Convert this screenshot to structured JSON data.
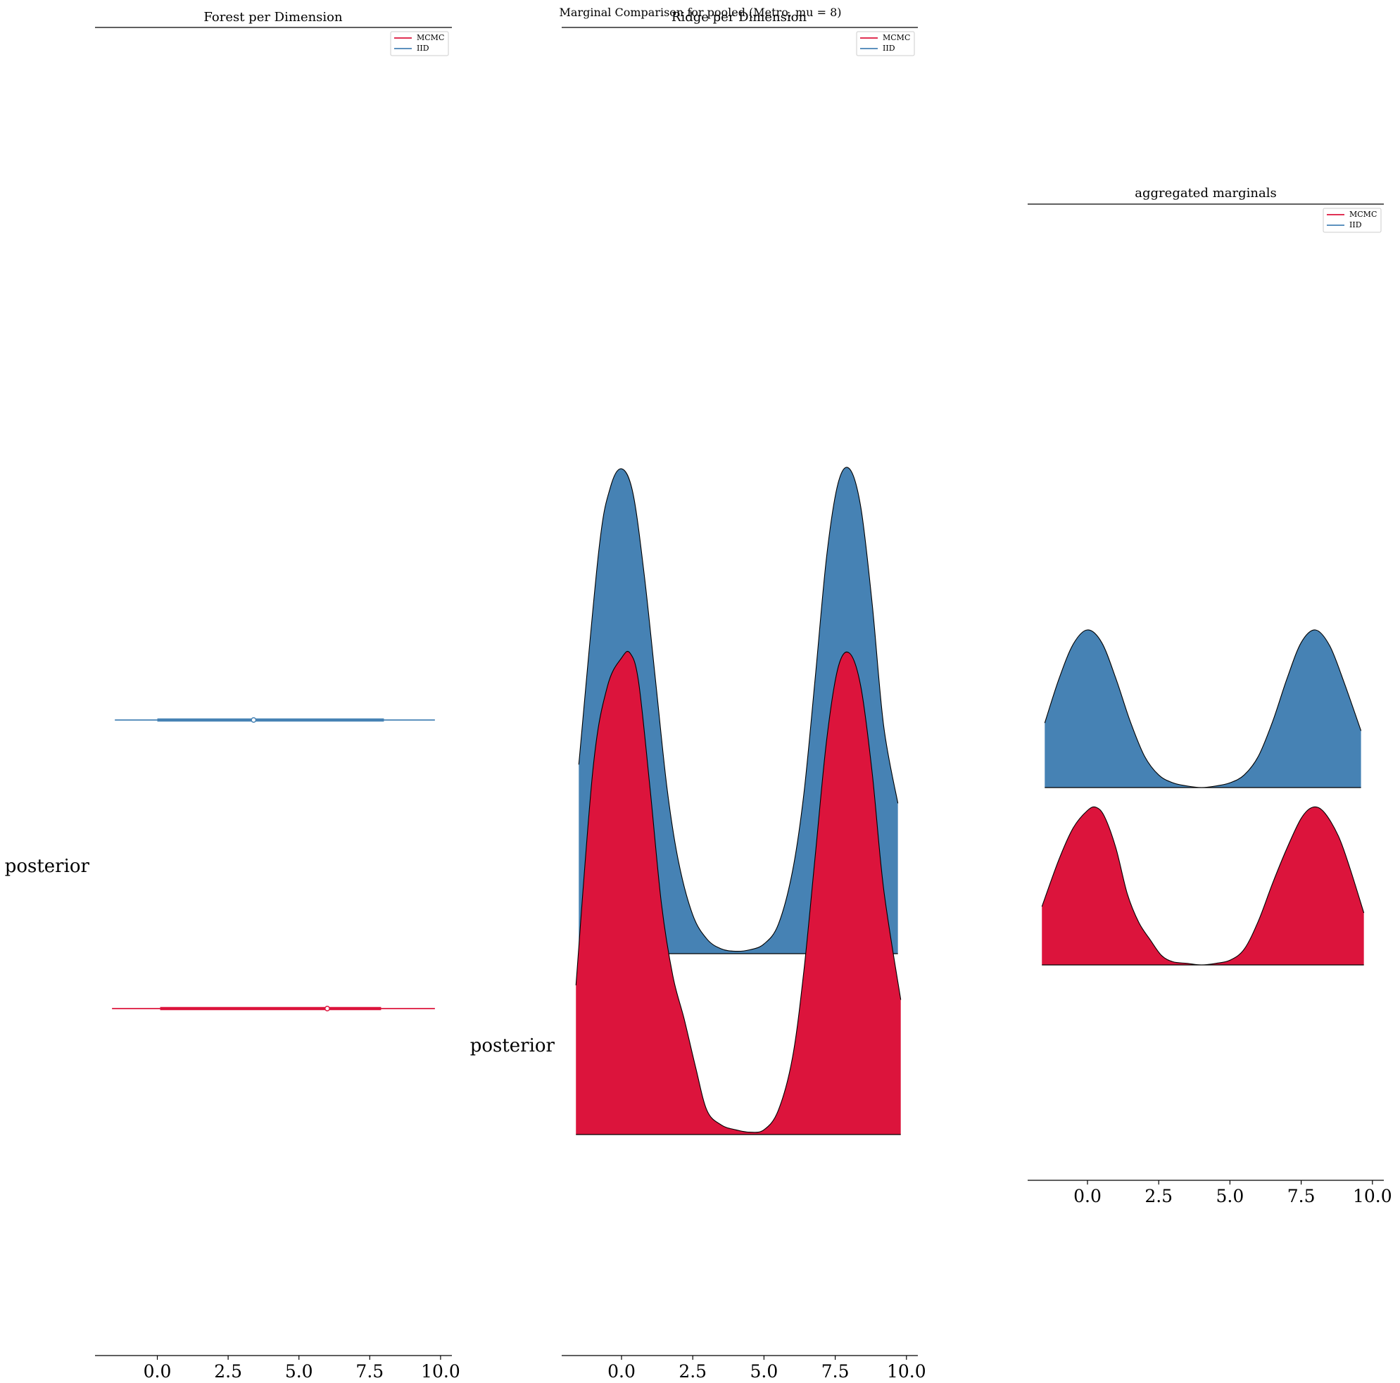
{
  "figure": {
    "suptitle": "Marginal Comparison for pooled (Metro, mu = 8)"
  },
  "colors": {
    "mcmc": "#DC143C",
    "iid": "#4682B4",
    "edge": "#000000"
  },
  "legend": {
    "entries": [
      {
        "label": "MCMC",
        "color": "#DC143C"
      },
      {
        "label": "IID",
        "color": "#4682B4"
      }
    ]
  },
  "chart_data": [
    {
      "type": "forest",
      "title": "Forest per Dimension",
      "ytick_label": "posterior",
      "xticks": [
        0.0,
        2.5,
        5.0,
        7.5,
        10.0
      ],
      "xtick_labels": [
        "0.0",
        "2.5",
        "5.0",
        "7.5",
        "10.0"
      ],
      "xlim": [
        -2.2,
        10.4
      ],
      "legend_placement": "top-right",
      "series": [
        {
          "name": "IID",
          "color": "#4682B4",
          "hdi_outer": [
            -1.5,
            9.8
          ],
          "hdi_inner": [
            0.0,
            8.0
          ],
          "point": 3.4
        },
        {
          "name": "MCMC",
          "color": "#DC143C",
          "hdi_outer": [
            -1.6,
            9.8
          ],
          "hdi_inner": [
            0.1,
            7.9
          ],
          "point": 6.0
        }
      ]
    },
    {
      "type": "area",
      "subtype": "ridgeline",
      "title": "Ridge per Dimension",
      "ytick_label": "posterior",
      "xticks": [
        0.0,
        2.5,
        5.0,
        7.5,
        10.0
      ],
      "xtick_labels": [
        "0.0",
        "2.5",
        "5.0",
        "7.5",
        "10.0"
      ],
      "xlim": [
        -2.1,
        10.4
      ],
      "legend_placement": "top-right",
      "series": [
        {
          "name": "IID",
          "color": "#4682B4",
          "x": [
            -1.5,
            -0.8,
            -0.4,
            0.0,
            0.4,
            0.8,
            1.2,
            1.6,
            2.0,
            2.5,
            3.0,
            3.5,
            4.0,
            4.5,
            5.0,
            5.5,
            6.0,
            6.4,
            6.8,
            7.2,
            7.6,
            8.0,
            8.4,
            8.8,
            9.2,
            9.7
          ],
          "y": [
            0.39,
            0.83,
            0.96,
            1.0,
            0.95,
            0.78,
            0.56,
            0.34,
            0.19,
            0.08,
            0.03,
            0.01,
            0.005,
            0.008,
            0.02,
            0.06,
            0.17,
            0.33,
            0.57,
            0.82,
            0.97,
            1.0,
            0.92,
            0.72,
            0.47,
            0.31
          ]
        },
        {
          "name": "MCMC",
          "color": "#DC143C",
          "x": [
            -1.6,
            -1.0,
            -0.5,
            0.0,
            0.3,
            0.6,
            1.0,
            1.4,
            1.8,
            2.2,
            2.6,
            3.0,
            3.5,
            4.0,
            4.5,
            5.0,
            5.5,
            6.0,
            6.4,
            6.8,
            7.2,
            7.6,
            8.0,
            8.4,
            8.8,
            9.2,
            9.8
          ],
          "y": [
            0.31,
            0.76,
            0.93,
            0.99,
            1.0,
            0.94,
            0.72,
            0.48,
            0.33,
            0.24,
            0.14,
            0.05,
            0.02,
            0.01,
            0.005,
            0.01,
            0.05,
            0.16,
            0.34,
            0.58,
            0.82,
            0.97,
            1.0,
            0.93,
            0.75,
            0.51,
            0.28
          ]
        }
      ]
    },
    {
      "type": "area",
      "subtype": "ridgeline",
      "title": "aggregated marginals",
      "ytick_label": "",
      "xticks": [
        0.0,
        2.5,
        5.0,
        7.5,
        10.0
      ],
      "xtick_labels": [
        "0.0",
        "2.5",
        "5.0",
        "7.5",
        "10.0"
      ],
      "xlim": [
        -2.1,
        10.4
      ],
      "legend_placement": "top-right",
      "series": [
        {
          "name": "IID",
          "color": "#4682B4",
          "x": [
            -1.5,
            -1.0,
            -0.5,
            0.0,
            0.5,
            1.0,
            1.5,
            2.0,
            2.5,
            3.0,
            3.5,
            4.0,
            4.5,
            5.0,
            5.5,
            6.0,
            6.5,
            7.0,
            7.5,
            8.0,
            8.5,
            9.0,
            9.6
          ],
          "y": [
            0.41,
            0.69,
            0.91,
            1.0,
            0.92,
            0.69,
            0.42,
            0.2,
            0.08,
            0.03,
            0.01,
            0.0,
            0.01,
            0.03,
            0.08,
            0.2,
            0.42,
            0.69,
            0.92,
            1.0,
            0.9,
            0.67,
            0.36
          ]
        },
        {
          "name": "MCMC",
          "color": "#DC143C",
          "x": [
            -1.6,
            -1.0,
            -0.5,
            0.0,
            0.3,
            0.6,
            1.0,
            1.4,
            1.8,
            2.2,
            2.6,
            3.0,
            3.5,
            4.0,
            4.5,
            5.0,
            5.5,
            6.0,
            6.5,
            7.0,
            7.5,
            7.9,
            8.3,
            8.8,
            9.2,
            9.7
          ],
          "y": [
            0.37,
            0.67,
            0.87,
            0.98,
            1.0,
            0.94,
            0.74,
            0.45,
            0.27,
            0.16,
            0.06,
            0.02,
            0.01,
            0.0,
            0.01,
            0.03,
            0.1,
            0.28,
            0.52,
            0.74,
            0.93,
            1.0,
            0.97,
            0.82,
            0.62,
            0.33
          ]
        }
      ]
    }
  ]
}
